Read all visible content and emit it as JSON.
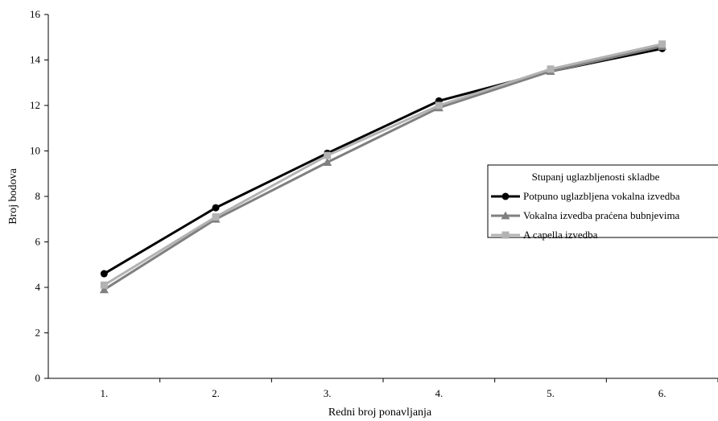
{
  "chart_data": {
    "type": "line",
    "categories": [
      "1.",
      "2.",
      "3.",
      "4.",
      "5.",
      "6."
    ],
    "xlabel": "Redni broj ponavljanja",
    "ylabel": "Broj bodova",
    "ylim": [
      0,
      16
    ],
    "yticks": [
      0,
      2,
      4,
      6,
      8,
      10,
      12,
      14,
      16
    ],
    "grid": false,
    "legend": {
      "title": "Stupanj uglazbljenosti skladbe",
      "placement": "right"
    },
    "series": [
      {
        "name": "Potpuno uglazbljena vokalna izvedba",
        "values": [
          4.6,
          7.5,
          9.9,
          12.2,
          13.5,
          14.5
        ],
        "color": "#000000",
        "marker": "circle"
      },
      {
        "name": "Vokalna izvedba praćena bubnjevima",
        "values": [
          3.9,
          7.0,
          9.5,
          11.9,
          13.5,
          14.6
        ],
        "color": "#808080",
        "marker": "triangle"
      },
      {
        "name": "A capella izvedba",
        "values": [
          4.1,
          7.1,
          9.8,
          12.0,
          13.6,
          14.7
        ],
        "color": "#b3b3b3",
        "marker": "square"
      }
    ]
  }
}
